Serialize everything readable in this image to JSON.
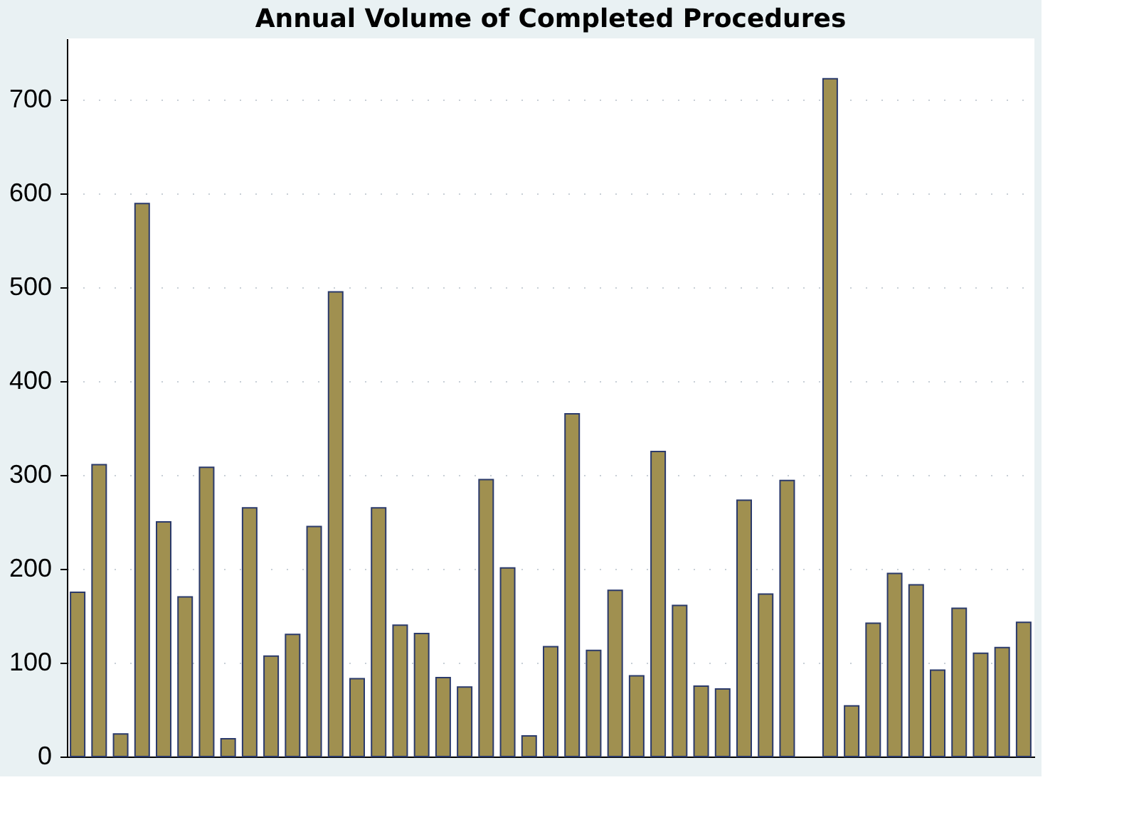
{
  "chart_data": {
    "type": "bar",
    "title": "Annual Volume of Completed Procedures",
    "categories": [
      null,
      null,
      null,
      null,
      null,
      null,
      null,
      null,
      null,
      null,
      null,
      null,
      null,
      null,
      null,
      null,
      null,
      null,
      null,
      null,
      null,
      null,
      null,
      null,
      null,
      null,
      null,
      null,
      null,
      null,
      null,
      null,
      null,
      null,
      null,
      null,
      null,
      null,
      null,
      null,
      null,
      null,
      null,
      null,
      null
    ],
    "values": [
      175,
      311,
      24,
      589,
      250,
      170,
      308,
      19,
      265,
      107,
      130,
      245,
      495,
      83,
      265,
      140,
      131,
      84,
      74,
      295,
      201,
      22,
      117,
      365,
      113,
      177,
      86,
      325,
      161,
      75,
      72,
      273,
      173,
      294,
      null,
      722,
      54,
      142,
      195,
      183,
      92,
      158,
      110,
      116,
      143
    ],
    "color": "#a09050",
    "ylim": [
      0,
      765
    ],
    "yticks": [
      0,
      100,
      200,
      300,
      400,
      500,
      600,
      700
    ],
    "grid": "y",
    "tick_labels": "y"
  }
}
